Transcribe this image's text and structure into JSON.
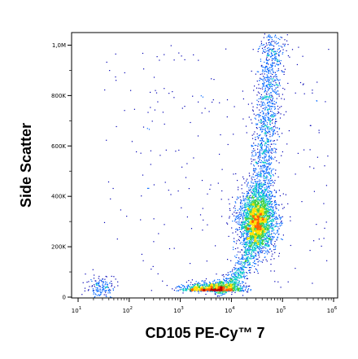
{
  "chart_data": {
    "type": "scatter",
    "title": "",
    "xlabel": "CD105 PE-Cy™ 7",
    "ylabel": "Side Scatter",
    "x_scale": "log",
    "xlim": [
      10,
      1000000
    ],
    "ylim": [
      0,
      1050000
    ],
    "x_ticks": [
      {
        "value": 10,
        "base": "10",
        "exp": "1"
      },
      {
        "value": 100,
        "base": "10",
        "exp": "2"
      },
      {
        "value": 1000,
        "base": "10",
        "exp": "3"
      },
      {
        "value": 10000,
        "base": "10",
        "exp": "4"
      },
      {
        "value": 100000,
        "base": "10",
        "exp": "5"
      },
      {
        "value": 1000000,
        "base": "10",
        "exp": "6"
      }
    ],
    "y_ticks": [
      {
        "value": 0,
        "label": "0"
      },
      {
        "value": 200000,
        "label": "200K"
      },
      {
        "value": 400000,
        "label": "400K"
      },
      {
        "value": 600000,
        "label": "600K"
      },
      {
        "value": 800000,
        "label": "800K"
      },
      {
        "value": 1000000,
        "label": "1,0M"
      }
    ],
    "grid": false,
    "point_color_scale": [
      "#0000b4",
      "#0066ff",
      "#00c8c8",
      "#40d040",
      "#ffe000",
      "#ff6000",
      "#c00000"
    ],
    "populations": [
      {
        "x": 30000,
        "y": 300000,
        "count": "high",
        "shape": "dense main cluster"
      },
      {
        "x": 50000,
        "y": 650000,
        "count": "medium",
        "shape": "upward plume"
      },
      {
        "x": 5000,
        "y": 25000,
        "count": "medium",
        "shape": "low horizontal band"
      },
      {
        "x": 30,
        "y": 40000,
        "count": "low",
        "shape": "small cluster near origin"
      }
    ]
  }
}
